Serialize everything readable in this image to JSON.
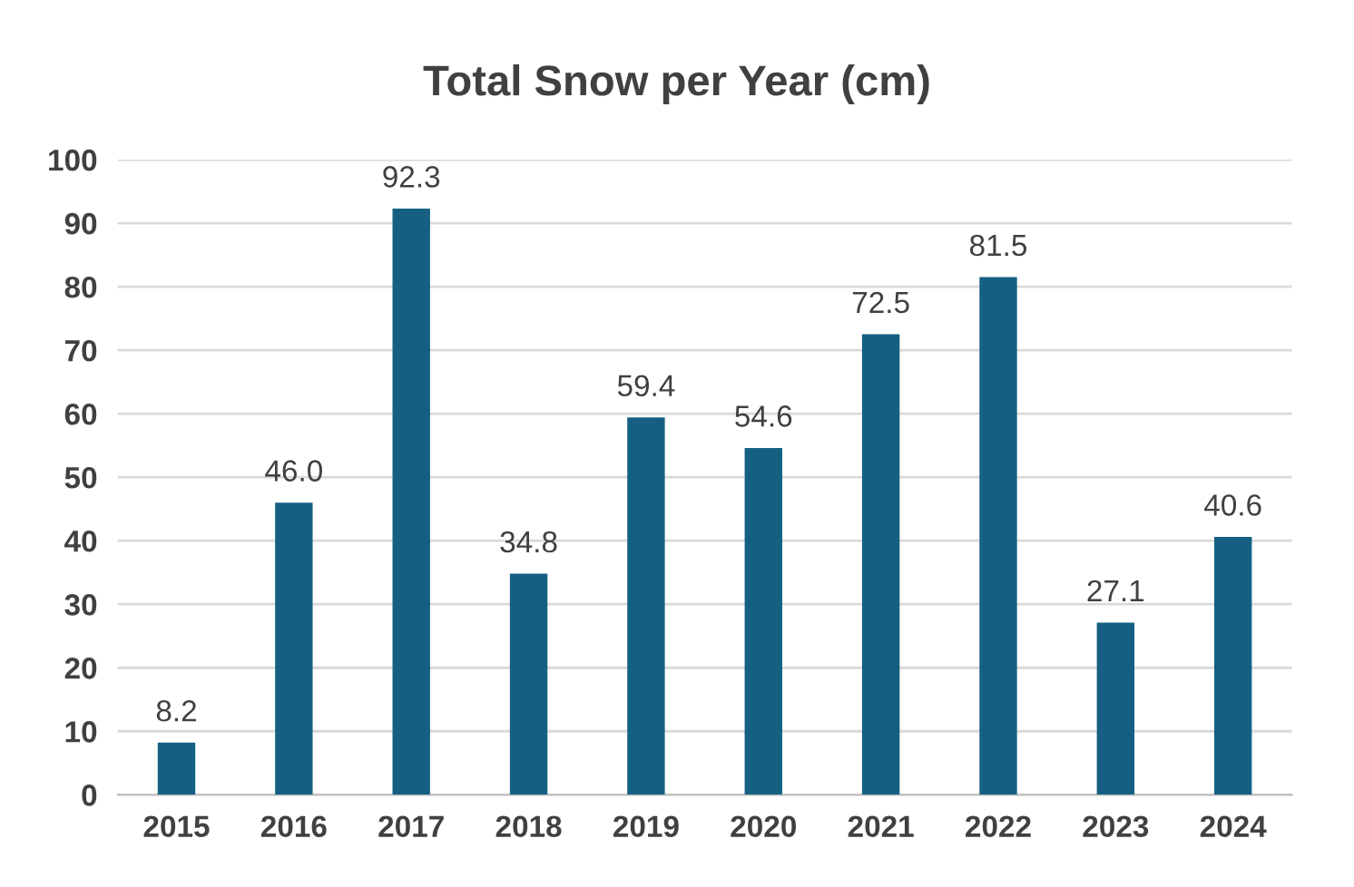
{
  "chart_data": {
    "type": "bar",
    "title": "Total Snow per Year (cm)",
    "categories": [
      "2015",
      "2016",
      "2017",
      "2018",
      "2019",
      "2020",
      "2021",
      "2022",
      "2023",
      "2024"
    ],
    "values": [
      8.2,
      46.0,
      92.3,
      34.8,
      59.4,
      54.6,
      72.5,
      81.5,
      27.1,
      40.6
    ],
    "value_labels": [
      "8.2",
      "46.0",
      "92.3",
      "34.8",
      "59.4",
      "54.6",
      "72.5",
      "81.5",
      "27.1",
      "40.6"
    ],
    "color": "#156082",
    "ylim": [
      0,
      100
    ],
    "yticks": [
      0,
      10,
      20,
      30,
      40,
      50,
      60,
      70,
      80,
      90,
      100
    ],
    "grid": "y",
    "legend": false
  }
}
